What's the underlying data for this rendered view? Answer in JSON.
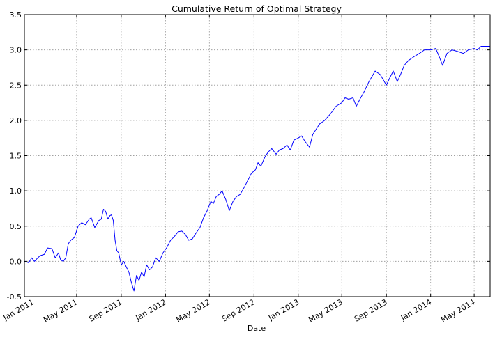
{
  "chart_data": {
    "type": "line",
    "title": "Cumulative Return of Optimal Strategy",
    "xlabel": "Date",
    "ylabel": "",
    "grid": true,
    "legend": "none",
    "line_color": "#0000ff",
    "xlim": [
      "2010-12-08",
      "2014-06-14"
    ],
    "ylim": [
      -0.5,
      3.5
    ],
    "y_ticks": [
      "-0.5",
      "0.0",
      "0.5",
      "1.0",
      "1.5",
      "2.0",
      "2.5",
      "3.0",
      "3.5"
    ],
    "x_ticks": [
      {
        "label": "Jan 2011",
        "date": "2011-01-01"
      },
      {
        "label": "May 2011",
        "date": "2011-05-01"
      },
      {
        "label": "Sep 2011",
        "date": "2011-09-01"
      },
      {
        "label": "Jan 2012",
        "date": "2012-01-01"
      },
      {
        "label": "May 2012",
        "date": "2012-05-01"
      },
      {
        "label": "Sep 2012",
        "date": "2012-09-01"
      },
      {
        "label": "Jan 2013",
        "date": "2013-01-01"
      },
      {
        "label": "May 2013",
        "date": "2013-05-01"
      },
      {
        "label": "Sep 2013",
        "date": "2013-09-01"
      },
      {
        "label": "Jan 2014",
        "date": "2014-01-01"
      },
      {
        "label": "May 2014",
        "date": "2014-05-01"
      }
    ],
    "series": [
      {
        "x": [
          "2010-12-08",
          "2010-12-20",
          "2010-12-28",
          "2011-01-05",
          "2011-01-12",
          "2011-01-20",
          "2011-02-01",
          "2011-02-10",
          "2011-02-22",
          "2011-03-03",
          "2011-03-12",
          "2011-03-18",
          "2011-03-25",
          "2011-04-01",
          "2011-04-08",
          "2011-04-15",
          "2011-04-25",
          "2011-05-05",
          "2011-05-15",
          "2011-05-25",
          "2011-06-05",
          "2011-06-10",
          "2011-06-20",
          "2011-07-01",
          "2011-07-08",
          "2011-07-14",
          "2011-07-20",
          "2011-07-26",
          "2011-08-01",
          "2011-08-05",
          "2011-08-10",
          "2011-08-15",
          "2011-08-20",
          "2011-08-25",
          "2011-09-01",
          "2011-09-08",
          "2011-09-15",
          "2011-09-22",
          "2011-09-29",
          "2011-10-06",
          "2011-10-13",
          "2011-10-20",
          "2011-10-27",
          "2011-11-03",
          "2011-11-10",
          "2011-11-18",
          "2011-11-26",
          "2011-12-05",
          "2011-12-15",
          "2011-12-25",
          "2012-01-05",
          "2012-01-15",
          "2012-01-25",
          "2012-02-05",
          "2012-02-15",
          "2012-02-25",
          "2012-03-05",
          "2012-03-15",
          "2012-03-25",
          "2012-04-05",
          "2012-04-15",
          "2012-04-25",
          "2012-05-05",
          "2012-05-12",
          "2012-05-20",
          "2012-05-28",
          "2012-06-05",
          "2012-06-15",
          "2012-06-25",
          "2012-07-05",
          "2012-07-15",
          "2012-07-25",
          "2012-08-05",
          "2012-08-15",
          "2012-08-25",
          "2012-09-05",
          "2012-09-12",
          "2012-09-20",
          "2012-10-01",
          "2012-10-10",
          "2012-10-20",
          "2012-11-01",
          "2012-11-10",
          "2012-11-20",
          "2012-12-01",
          "2012-12-10",
          "2012-12-20",
          "2013-01-01",
          "2013-01-10",
          "2013-01-20",
          "2013-02-01",
          "2013-02-10",
          "2013-02-20",
          "2013-03-01",
          "2013-03-15",
          "2013-04-01",
          "2013-04-15",
          "2013-05-01",
          "2013-05-10",
          "2013-05-20",
          "2013-06-01",
          "2013-06-10",
          "2013-06-20",
          "2013-07-01",
          "2013-07-15",
          "2013-08-01",
          "2013-08-15",
          "2013-09-01",
          "2013-09-10",
          "2013-09-20",
          "2013-10-01",
          "2013-10-10",
          "2013-10-20",
          "2013-11-01",
          "2013-11-15",
          "2013-12-01",
          "2013-12-15",
          "2014-01-01",
          "2014-01-15",
          "2014-01-25",
          "2014-02-03",
          "2014-02-15",
          "2014-03-01",
          "2014-03-15",
          "2014-04-01",
          "2014-04-15",
          "2014-05-01",
          "2014-05-10",
          "2014-05-20",
          "2014-06-01",
          "2014-06-14"
        ],
        "y": [
          0.0,
          -0.02,
          0.05,
          0.0,
          0.04,
          0.08,
          0.1,
          0.19,
          0.18,
          0.05,
          0.12,
          0.02,
          0.0,
          0.05,
          0.25,
          0.3,
          0.34,
          0.5,
          0.55,
          0.52,
          0.6,
          0.62,
          0.48,
          0.58,
          0.6,
          0.74,
          0.71,
          0.6,
          0.65,
          0.66,
          0.58,
          0.3,
          0.15,
          0.12,
          -0.05,
          0.0,
          -0.08,
          -0.15,
          -0.3,
          -0.42,
          -0.2,
          -0.27,
          -0.15,
          -0.22,
          -0.05,
          -0.12,
          -0.08,
          0.05,
          0.0,
          0.12,
          0.2,
          0.3,
          0.35,
          0.42,
          0.43,
          0.38,
          0.3,
          0.32,
          0.4,
          0.48,
          0.62,
          0.72,
          0.85,
          0.82,
          0.92,
          0.95,
          1.0,
          0.88,
          0.72,
          0.85,
          0.92,
          0.95,
          1.05,
          1.15,
          1.25,
          1.3,
          1.4,
          1.35,
          1.48,
          1.55,
          1.6,
          1.52,
          1.58,
          1.6,
          1.65,
          1.58,
          1.72,
          1.75,
          1.78,
          1.7,
          1.62,
          1.8,
          1.88,
          1.95,
          2.0,
          2.1,
          2.2,
          2.25,
          2.32,
          2.3,
          2.32,
          2.2,
          2.3,
          2.4,
          2.55,
          2.7,
          2.65,
          2.5,
          2.6,
          2.7,
          2.55,
          2.65,
          2.78,
          2.85,
          2.9,
          2.95,
          3.0,
          3.0,
          3.02,
          2.9,
          2.78,
          2.95,
          3.0,
          2.98,
          2.95,
          3.0,
          3.02,
          3.0,
          3.05,
          3.05,
          3.05
        ]
      }
    ]
  }
}
